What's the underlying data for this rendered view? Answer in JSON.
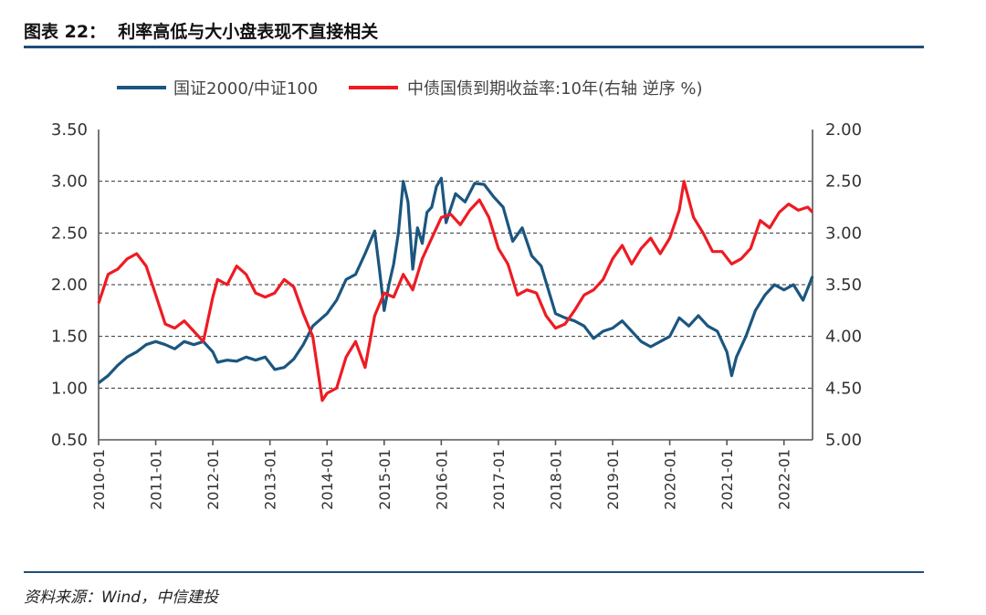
{
  "page": {
    "figure_title": "图表 22：  利率高低与大小盘表现不直接相关",
    "source_note": "资料来源：Wind，中信建投"
  },
  "colors": {
    "series_1": "#1b567f",
    "series_2": "#ee1b23",
    "rule": "#1f4e79"
  },
  "chart_data": {
    "type": "line",
    "title": "",
    "legend_position": "top",
    "grid": "horizontal dashed",
    "x_type": "date",
    "x_range": [
      "2010-01",
      "2022-07"
    ],
    "x_ticks": [
      "2010-01",
      "2011-01",
      "2012-01",
      "2013-01",
      "2014-01",
      "2015-01",
      "2016-01",
      "2017-01",
      "2018-01",
      "2019-01",
      "2020-01",
      "2021-01",
      "2022-01"
    ],
    "y_left": {
      "range": [
        0.5,
        3.5
      ],
      "ticks": [
        "3.50",
        "3.00",
        "2.50",
        "2.00",
        "1.50",
        "1.00",
        "0.50"
      ]
    },
    "y_right": {
      "range": [
        2.0,
        5.0
      ],
      "inverted": true,
      "ticks": [
        "2.00",
        "2.50",
        "3.00",
        "3.50",
        "4.00",
        "4.50",
        "5.00"
      ]
    },
    "series": [
      {
        "name": "国证2000/中证100",
        "axis": "left",
        "points": [
          [
            "2010-01",
            1.05
          ],
          [
            "2010-03",
            1.12
          ],
          [
            "2010-05",
            1.22
          ],
          [
            "2010-07",
            1.3
          ],
          [
            "2010-09",
            1.35
          ],
          [
            "2010-11",
            1.42
          ],
          [
            "2011-01",
            1.45
          ],
          [
            "2011-03",
            1.42
          ],
          [
            "2011-05",
            1.38
          ],
          [
            "2011-07",
            1.45
          ],
          [
            "2011-09",
            1.42
          ],
          [
            "2011-11",
            1.45
          ],
          [
            "2012-01",
            1.35
          ],
          [
            "2012-02",
            1.25
          ],
          [
            "2012-04",
            1.27
          ],
          [
            "2012-06",
            1.26
          ],
          [
            "2012-08",
            1.3
          ],
          [
            "2012-10",
            1.27
          ],
          [
            "2012-12",
            1.3
          ],
          [
            "2013-02",
            1.18
          ],
          [
            "2013-04",
            1.2
          ],
          [
            "2013-06",
            1.28
          ],
          [
            "2013-08",
            1.42
          ],
          [
            "2013-10",
            1.6
          ],
          [
            "2014-01",
            1.72
          ],
          [
            "2014-03",
            1.85
          ],
          [
            "2014-05",
            2.05
          ],
          [
            "2014-07",
            2.1
          ],
          [
            "2014-09",
            2.3
          ],
          [
            "2014-11",
            2.52
          ],
          [
            "2014-12",
            2.15
          ],
          [
            "2015-01",
            1.75
          ],
          [
            "2015-02",
            2.0
          ],
          [
            "2015-03",
            2.2
          ],
          [
            "2015-04",
            2.5
          ],
          [
            "2015-05",
            3.0
          ],
          [
            "2015-06",
            2.8
          ],
          [
            "2015-07",
            2.15
          ],
          [
            "2015-08",
            2.55
          ],
          [
            "2015-09",
            2.4
          ],
          [
            "2015-10",
            2.7
          ],
          [
            "2015-11",
            2.75
          ],
          [
            "2015-12",
            2.95
          ],
          [
            "2016-01",
            3.03
          ],
          [
            "2016-02",
            2.6
          ],
          [
            "2016-04",
            2.88
          ],
          [
            "2016-06",
            2.8
          ],
          [
            "2016-08",
            2.98
          ],
          [
            "2016-10",
            2.97
          ],
          [
            "2016-12",
            2.85
          ],
          [
            "2017-02",
            2.75
          ],
          [
            "2017-04",
            2.42
          ],
          [
            "2017-06",
            2.55
          ],
          [
            "2017-08",
            2.28
          ],
          [
            "2017-10",
            2.18
          ],
          [
            "2018-01",
            1.72
          ],
          [
            "2018-03",
            1.68
          ],
          [
            "2018-05",
            1.65
          ],
          [
            "2018-07",
            1.6
          ],
          [
            "2018-09",
            1.48
          ],
          [
            "2018-11",
            1.55
          ],
          [
            "2019-01",
            1.58
          ],
          [
            "2019-03",
            1.65
          ],
          [
            "2019-05",
            1.55
          ],
          [
            "2019-07",
            1.45
          ],
          [
            "2019-09",
            1.4
          ],
          [
            "2019-11",
            1.45
          ],
          [
            "2020-01",
            1.5
          ],
          [
            "2020-03",
            1.68
          ],
          [
            "2020-05",
            1.6
          ],
          [
            "2020-07",
            1.7
          ],
          [
            "2020-09",
            1.6
          ],
          [
            "2020-11",
            1.55
          ],
          [
            "2021-01",
            1.35
          ],
          [
            "2021-02",
            1.12
          ],
          [
            "2021-03",
            1.3
          ],
          [
            "2021-05",
            1.5
          ],
          [
            "2021-07",
            1.75
          ],
          [
            "2021-09",
            1.9
          ],
          [
            "2021-11",
            2.0
          ],
          [
            "2022-01",
            1.95
          ],
          [
            "2022-03",
            2.0
          ],
          [
            "2022-05",
            1.85
          ],
          [
            "2022-07",
            2.08
          ]
        ]
      },
      {
        "name": "中债国债到期收益率:10年(右轴 逆序 %)",
        "axis": "right",
        "points": [
          [
            "2010-01",
            3.68
          ],
          [
            "2010-03",
            3.4
          ],
          [
            "2010-05",
            3.35
          ],
          [
            "2010-07",
            3.25
          ],
          [
            "2010-09",
            3.2
          ],
          [
            "2010-11",
            3.32
          ],
          [
            "2011-01",
            3.6
          ],
          [
            "2011-03",
            3.88
          ],
          [
            "2011-05",
            3.92
          ],
          [
            "2011-07",
            3.85
          ],
          [
            "2011-09",
            3.95
          ],
          [
            "2011-11",
            4.05
          ],
          [
            "2012-01",
            3.62
          ],
          [
            "2012-02",
            3.45
          ],
          [
            "2012-04",
            3.5
          ],
          [
            "2012-06",
            3.32
          ],
          [
            "2012-08",
            3.4
          ],
          [
            "2012-10",
            3.58
          ],
          [
            "2012-12",
            3.62
          ],
          [
            "2013-02",
            3.58
          ],
          [
            "2013-04",
            3.45
          ],
          [
            "2013-06",
            3.52
          ],
          [
            "2013-08",
            3.78
          ],
          [
            "2013-10",
            4.0
          ],
          [
            "2013-12",
            4.62
          ],
          [
            "2014-01",
            4.55
          ],
          [
            "2014-03",
            4.5
          ],
          [
            "2014-05",
            4.2
          ],
          [
            "2014-07",
            4.05
          ],
          [
            "2014-09",
            4.3
          ],
          [
            "2014-11",
            3.8
          ],
          [
            "2015-01",
            3.58
          ],
          [
            "2015-03",
            3.62
          ],
          [
            "2015-05",
            3.4
          ],
          [
            "2015-07",
            3.55
          ],
          [
            "2015-09",
            3.25
          ],
          [
            "2015-11",
            3.05
          ],
          [
            "2016-01",
            2.85
          ],
          [
            "2016-03",
            2.82
          ],
          [
            "2016-05",
            2.92
          ],
          [
            "2016-07",
            2.78
          ],
          [
            "2016-09",
            2.68
          ],
          [
            "2016-11",
            2.85
          ],
          [
            "2017-01",
            3.15
          ],
          [
            "2017-03",
            3.3
          ],
          [
            "2017-05",
            3.6
          ],
          [
            "2017-07",
            3.55
          ],
          [
            "2017-09",
            3.58
          ],
          [
            "2017-11",
            3.8
          ],
          [
            "2018-01",
            3.92
          ],
          [
            "2018-03",
            3.88
          ],
          [
            "2018-05",
            3.75
          ],
          [
            "2018-07",
            3.6
          ],
          [
            "2018-09",
            3.55
          ],
          [
            "2018-11",
            3.45
          ],
          [
            "2019-01",
            3.25
          ],
          [
            "2019-03",
            3.12
          ],
          [
            "2019-05",
            3.3
          ],
          [
            "2019-07",
            3.15
          ],
          [
            "2019-09",
            3.05
          ],
          [
            "2019-11",
            3.2
          ],
          [
            "2020-01",
            3.05
          ],
          [
            "2020-03",
            2.78
          ],
          [
            "2020-04",
            2.5
          ],
          [
            "2020-06",
            2.85
          ],
          [
            "2020-08",
            3.0
          ],
          [
            "2020-10",
            3.18
          ],
          [
            "2020-12",
            3.18
          ],
          [
            "2021-02",
            3.3
          ],
          [
            "2021-04",
            3.25
          ],
          [
            "2021-06",
            3.15
          ],
          [
            "2021-08",
            2.88
          ],
          [
            "2021-10",
            2.95
          ],
          [
            "2021-12",
            2.8
          ],
          [
            "2022-02",
            2.72
          ],
          [
            "2022-04",
            2.78
          ],
          [
            "2022-06",
            2.75
          ],
          [
            "2022-07",
            2.8
          ]
        ]
      }
    ]
  }
}
